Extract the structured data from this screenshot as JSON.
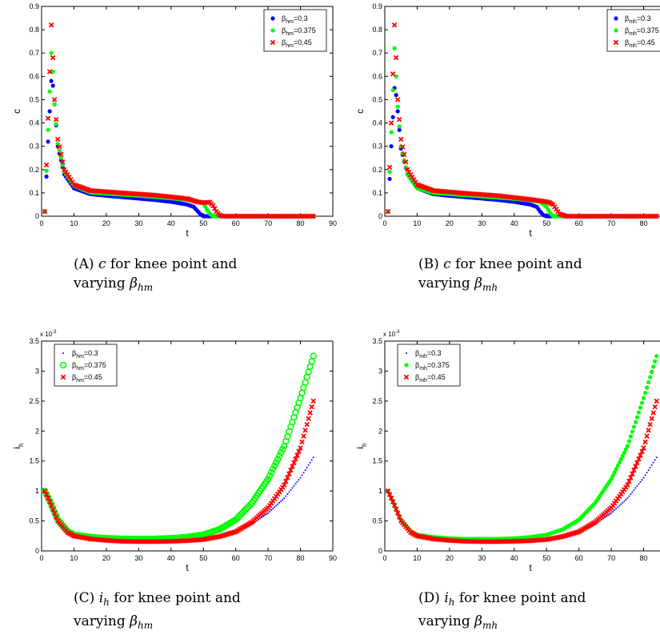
{
  "captions": [
    {
      "label": "(A)",
      "var": "c",
      "text1": "for knee point and",
      "text2": "varying",
      "beta": "β",
      "sub": "hm"
    },
    {
      "label": "(B)",
      "var": "c",
      "text1": "for knee point and",
      "text2": "varying",
      "beta": "β",
      "sub": "mh"
    },
    {
      "label": "(C)",
      "var": "i",
      "var_sub": "h",
      "text1": "for knee point and",
      "text2": "varying",
      "beta": "β",
      "sub": "hm"
    },
    {
      "label": "(D)",
      "var": "i",
      "var_sub": "h",
      "text1": "for knee point and",
      "text2": "varying",
      "beta": "β",
      "sub": "mh"
    }
  ],
  "colors": {
    "blue": "#0000ff",
    "green": "#00ff00",
    "red": "#ff0000",
    "axis": "#000000"
  },
  "chart_data": [
    {
      "type": "scatter",
      "xlabel": "t",
      "ylabel": "c",
      "xlim": [
        0,
        90
      ],
      "ylim": [
        0,
        0.9
      ],
      "xticks": [
        "0",
        "10",
        "20",
        "30",
        "40",
        "50",
        "60",
        "70",
        "80",
        "90"
      ],
      "yticks": [
        "0",
        "0.1",
        "0.2",
        "0.3",
        "0.4",
        "0.5",
        "0.6",
        "0.7",
        "0.8",
        "0.9"
      ],
      "legend_position": "top-right",
      "series": [
        {
          "name": "β",
          "name_sub": "hm",
          "name_val": "=0.3",
          "color": "#0000ff",
          "marker": "dot",
          "x": [
            1,
            2,
            3,
            3.5,
            4,
            5,
            7,
            10,
            15,
            20,
            25,
            30,
            35,
            40,
            43,
            45,
            47,
            48,
            49,
            50,
            51,
            53,
            55,
            60,
            70,
            84
          ],
          "y": [
            0.02,
            0.32,
            0.58,
            0.56,
            0.48,
            0.3,
            0.18,
            0.12,
            0.095,
            0.088,
            0.082,
            0.076,
            0.07,
            0.062,
            0.055,
            0.05,
            0.04,
            0.025,
            0.01,
            0,
            0,
            0,
            0,
            0,
            0,
            0
          ]
        },
        {
          "name": "β",
          "name_sub": "hm",
          "name_val": "=0.375",
          "color": "#00ff00",
          "marker": "dot",
          "x": [
            1,
            2,
            3,
            3.5,
            4,
            5,
            7,
            10,
            15,
            20,
            25,
            30,
            35,
            40,
            45,
            48,
            50,
            51,
            52,
            53,
            55,
            60,
            70,
            84
          ],
          "y": [
            0.02,
            0.37,
            0.7,
            0.62,
            0.48,
            0.31,
            0.19,
            0.13,
            0.102,
            0.097,
            0.093,
            0.088,
            0.083,
            0.077,
            0.07,
            0.065,
            0.055,
            0.03,
            0.01,
            0,
            0,
            0,
            0,
            0
          ]
        },
        {
          "name": "β",
          "name_sub": "hm",
          "name_val": "=0.45",
          "color": "#ff0000",
          "marker": "x",
          "x": [
            1,
            2,
            3,
            3.5,
            4,
            5,
            7,
            10,
            15,
            20,
            25,
            30,
            35,
            40,
            45,
            48,
            50,
            52,
            53,
            54,
            55,
            56,
            60,
            70,
            84
          ],
          "y": [
            0.02,
            0.42,
            0.82,
            0.68,
            0.5,
            0.33,
            0.2,
            0.135,
            0.11,
            0.105,
            0.1,
            0.095,
            0.09,
            0.083,
            0.075,
            0.062,
            0.058,
            0.06,
            0.045,
            0.02,
            0.005,
            0,
            0,
            0,
            0
          ]
        }
      ]
    },
    {
      "type": "scatter",
      "xlabel": "t",
      "ylabel": "c",
      "xlim": [
        0,
        90
      ],
      "ylim": [
        0,
        0.9
      ],
      "xticks": [
        "0",
        "10",
        "20",
        "30",
        "40",
        "50",
        "60",
        "70",
        "80",
        "90"
      ],
      "yticks": [
        "0",
        "0.1",
        "0.2",
        "0.3",
        "0.4",
        "0.5",
        "0.6",
        "0.7",
        "0.8",
        "0.9"
      ],
      "legend_position": "top-right",
      "series": [
        {
          "name": "β",
          "name_sub": "mh",
          "name_val": "=0.3",
          "color": "#0000ff",
          "marker": "dot",
          "x": [
            1,
            2,
            3,
            3.5,
            4,
            5,
            7,
            10,
            15,
            20,
            25,
            30,
            35,
            40,
            45,
            47,
            48,
            49,
            50,
            52,
            55,
            60,
            70,
            84
          ],
          "y": [
            0.02,
            0.3,
            0.55,
            0.52,
            0.45,
            0.29,
            0.18,
            0.12,
            0.095,
            0.088,
            0.082,
            0.076,
            0.07,
            0.062,
            0.05,
            0.04,
            0.02,
            0.005,
            0,
            0,
            0,
            0,
            0,
            0
          ]
        },
        {
          "name": "β",
          "name_sub": "mh",
          "name_val": "=0.375",
          "color": "#00ff00",
          "marker": "dot",
          "x": [
            1,
            2,
            3,
            3.5,
            4,
            5,
            7,
            10,
            15,
            20,
            25,
            30,
            35,
            40,
            45,
            48,
            50,
            51,
            52,
            55,
            60,
            70,
            84
          ],
          "y": [
            0.02,
            0.36,
            0.72,
            0.6,
            0.47,
            0.3,
            0.18,
            0.12,
            0.1,
            0.095,
            0.09,
            0.085,
            0.08,
            0.075,
            0.068,
            0.062,
            0.04,
            0.015,
            0,
            0,
            0,
            0,
            0
          ]
        },
        {
          "name": "β",
          "name_sub": "mh",
          "name_val": "=0.45",
          "color": "#ff0000",
          "marker": "x",
          "x": [
            1,
            2,
            3,
            3.5,
            4,
            5,
            7,
            10,
            15,
            20,
            25,
            30,
            35,
            40,
            45,
            48,
            50,
            51,
            52,
            53,
            54,
            56,
            60,
            70,
            84
          ],
          "y": [
            0.02,
            0.4,
            0.82,
            0.68,
            0.5,
            0.33,
            0.2,
            0.135,
            0.11,
            0.104,
            0.098,
            0.093,
            0.088,
            0.08,
            0.072,
            0.066,
            0.062,
            0.058,
            0.05,
            0.03,
            0.01,
            0,
            0,
            0,
            0
          ]
        }
      ]
    },
    {
      "type": "scatter",
      "xlabel": "t",
      "ylabel": "i",
      "ylabel_sub": "h",
      "yexp": "x 10",
      "yexp_pow": "-3",
      "xlim": [
        0,
        90
      ],
      "ylim": [
        0,
        3.5
      ],
      "xticks": [
        "0",
        "10",
        "20",
        "30",
        "40",
        "50",
        "60",
        "70",
        "80",
        "90"
      ],
      "yticks": [
        "0",
        "0.5",
        "1",
        "1.5",
        "2",
        "2.5",
        "3",
        "3.5"
      ],
      "legend_position": "top-left",
      "series": [
        {
          "name": "β",
          "name_sub": "hm",
          "name_val": "=0.3",
          "color": "#0000ff",
          "marker": "tiny",
          "x": [
            1,
            3,
            5,
            8,
            10,
            15,
            20,
            25,
            30,
            35,
            40,
            45,
            50,
            55,
            60,
            65,
            70,
            75,
            80,
            84
          ],
          "y": [
            1.0,
            0.75,
            0.48,
            0.3,
            0.24,
            0.2,
            0.18,
            0.17,
            0.165,
            0.165,
            0.17,
            0.18,
            0.2,
            0.24,
            0.32,
            0.45,
            0.63,
            0.88,
            1.22,
            1.56
          ]
        },
        {
          "name": "β",
          "name_sub": "hm",
          "name_val": "=0.375",
          "color": "#00ff00",
          "marker": "ring",
          "x": [
            1,
            3,
            5,
            8,
            10,
            15,
            20,
            25,
            30,
            35,
            40,
            45,
            50,
            55,
            60,
            65,
            70,
            75,
            80,
            84
          ],
          "y": [
            1.0,
            0.78,
            0.52,
            0.33,
            0.27,
            0.23,
            0.21,
            0.2,
            0.2,
            0.2,
            0.21,
            0.23,
            0.27,
            0.36,
            0.52,
            0.8,
            1.2,
            1.75,
            2.55,
            3.25
          ]
        },
        {
          "name": "β",
          "name_sub": "hm",
          "name_val": "=0.45",
          "color": "#ff0000",
          "marker": "x",
          "x": [
            1,
            3,
            5,
            8,
            10,
            15,
            20,
            25,
            30,
            35,
            40,
            45,
            50,
            55,
            60,
            65,
            70,
            75,
            80,
            84
          ],
          "y": [
            1.0,
            0.76,
            0.5,
            0.31,
            0.25,
            0.2,
            0.175,
            0.16,
            0.155,
            0.155,
            0.16,
            0.17,
            0.19,
            0.24,
            0.32,
            0.48,
            0.72,
            1.1,
            1.72,
            2.5
          ]
        }
      ]
    },
    {
      "type": "scatter",
      "xlabel": "t",
      "ylabel": "i",
      "ylabel_sub": "h",
      "yexp": "x 10",
      "yexp_pow": "-3",
      "xlim": [
        0,
        90
      ],
      "ylim": [
        0,
        3.5
      ],
      "xticks": [
        "0",
        "10",
        "20",
        "30",
        "40",
        "50",
        "60",
        "70",
        "80",
        "90"
      ],
      "yticks": [
        "0",
        "0.5",
        "1",
        "1.5",
        "2",
        "2.5",
        "3",
        "3.5"
      ],
      "legend_position": "top-left",
      "series": [
        {
          "name": "β",
          "name_sub": "mh",
          "name_val": "=0.3",
          "color": "#0000ff",
          "marker": "tiny",
          "x": [
            1,
            3,
            5,
            8,
            10,
            15,
            20,
            25,
            30,
            35,
            40,
            45,
            50,
            55,
            60,
            65,
            70,
            75,
            80,
            84
          ],
          "y": [
            1.0,
            0.75,
            0.48,
            0.3,
            0.24,
            0.2,
            0.18,
            0.17,
            0.165,
            0.165,
            0.17,
            0.18,
            0.2,
            0.24,
            0.32,
            0.45,
            0.63,
            0.88,
            1.22,
            1.56
          ]
        },
        {
          "name": "β",
          "name_sub": "mh",
          "name_val": "=0.375",
          "color": "#00ff00",
          "marker": "dot",
          "x": [
            1,
            3,
            5,
            8,
            10,
            15,
            20,
            25,
            30,
            35,
            40,
            45,
            50,
            55,
            60,
            65,
            70,
            75,
            80,
            84
          ],
          "y": [
            1.0,
            0.78,
            0.52,
            0.33,
            0.27,
            0.23,
            0.21,
            0.2,
            0.2,
            0.2,
            0.21,
            0.23,
            0.27,
            0.36,
            0.52,
            0.8,
            1.2,
            1.75,
            2.55,
            3.25
          ]
        },
        {
          "name": "β",
          "name_sub": "mh",
          "name_val": "=0.45",
          "color": "#ff0000",
          "marker": "x",
          "x": [
            1,
            3,
            5,
            8,
            10,
            15,
            20,
            25,
            30,
            35,
            40,
            45,
            50,
            55,
            60,
            65,
            70,
            75,
            80,
            84
          ],
          "y": [
            1.0,
            0.76,
            0.5,
            0.31,
            0.25,
            0.2,
            0.175,
            0.16,
            0.155,
            0.155,
            0.16,
            0.17,
            0.19,
            0.24,
            0.32,
            0.48,
            0.72,
            1.1,
            1.72,
            2.5
          ]
        }
      ]
    }
  ]
}
